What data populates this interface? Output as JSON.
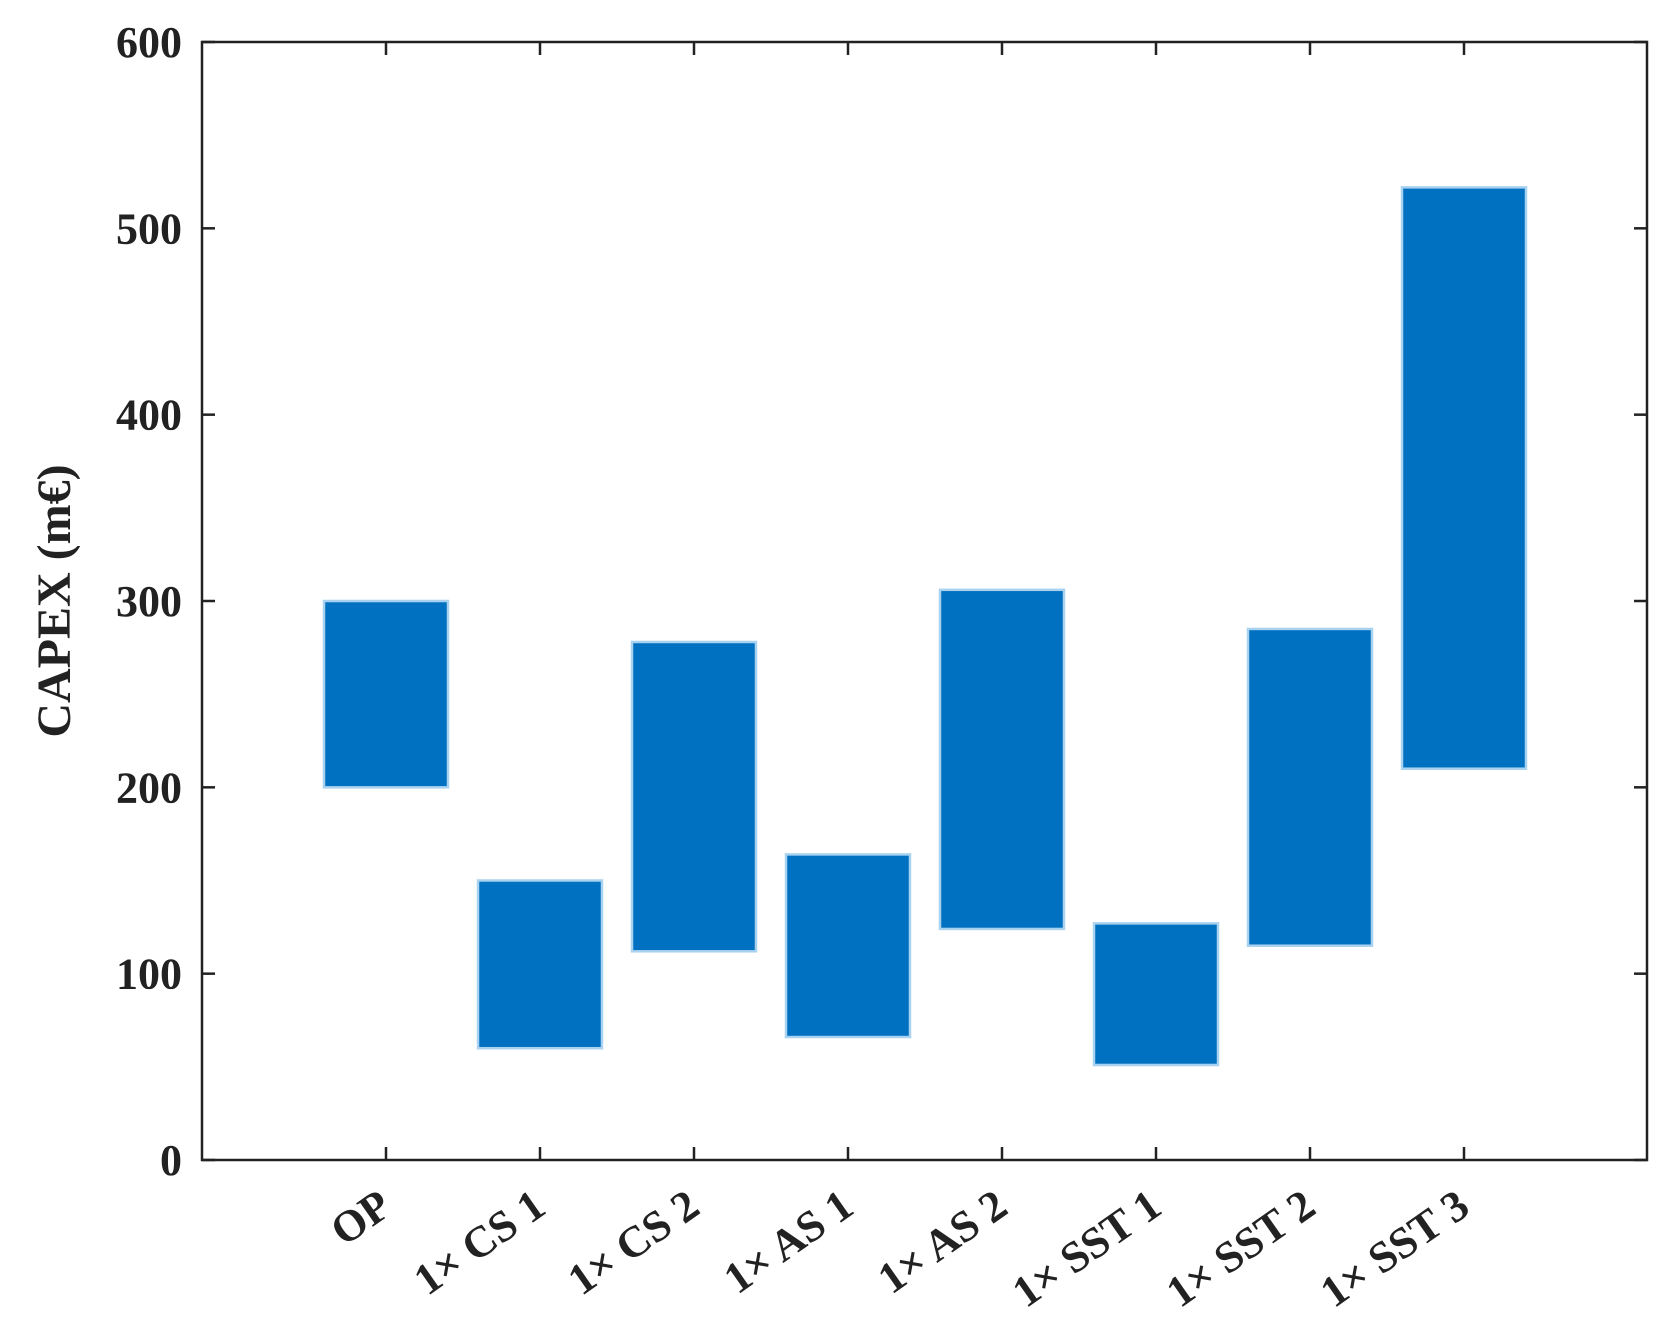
{
  "chart_data": {
    "type": "bar",
    "subtype": "floating-range",
    "categories": [
      "OP",
      "1× CS 1",
      "1× CS 2",
      "1× AS 1",
      "1× AS 2",
      "1× SST 1",
      "1× SST 2",
      "1× SST 3"
    ],
    "ranges": [
      [
        200,
        300
      ],
      [
        60,
        150
      ],
      [
        112,
        278
      ],
      [
        66,
        164
      ],
      [
        124,
        306
      ],
      [
        51,
        127
      ],
      [
        115,
        285
      ],
      [
        210,
        522
      ]
    ],
    "ylabel": "CAPEX (m€)",
    "xlabel": "",
    "title": "",
    "ylim": [
      0,
      600
    ],
    "yticks": [
      "0",
      "100",
      "200",
      "300",
      "400",
      "500",
      "600"
    ],
    "grid": false,
    "legend": "none",
    "colors": {
      "bar_fill": "#0070c0",
      "bar_edge": "#a9d2f0",
      "axis": "#222222"
    }
  }
}
